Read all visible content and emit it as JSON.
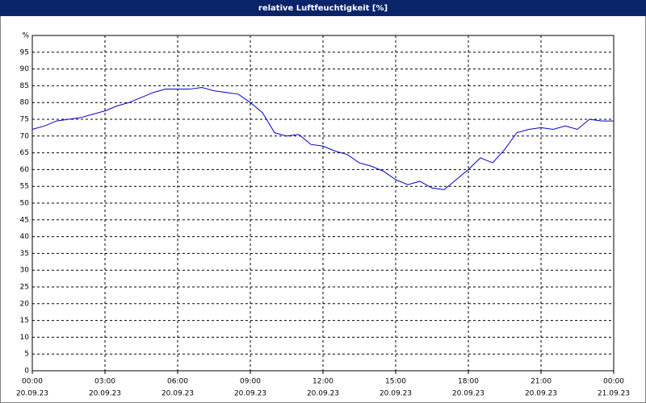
{
  "chart_data": {
    "type": "line",
    "title": "relative Luftfeuchtigkeit [%]",
    "y_label": "%",
    "x": [
      0,
      0.5,
      1,
      1.5,
      2,
      2.5,
      3,
      3.5,
      4,
      4.5,
      5,
      5.5,
      6,
      6.5,
      7,
      7.5,
      8,
      8.5,
      9,
      9.5,
      10,
      10.5,
      11,
      11.5,
      12,
      12.5,
      13,
      13.5,
      14,
      14.5,
      15,
      15.5,
      16,
      16.5,
      17,
      17.5,
      18,
      18.5,
      19,
      19.5,
      20,
      20.5,
      21,
      21.5,
      22,
      22.5,
      23,
      23.5,
      24
    ],
    "series": [
      {
        "name": "relative Luftfeuchtigkeit",
        "color": "#0000cc",
        "values": [
          72,
          73,
          74.5,
          75,
          75.5,
          76.5,
          77.5,
          79,
          80,
          81.5,
          83,
          84,
          84,
          84,
          84.5,
          83.5,
          83,
          82.5,
          80,
          77,
          71,
          70,
          70.5,
          67.5,
          67,
          65.5,
          64.5,
          62,
          61,
          59.5,
          57,
          55.5,
          56.5,
          54.5,
          54,
          57,
          60,
          63.5,
          62,
          66,
          71,
          72,
          72.5,
          72,
          73,
          72,
          75,
          74.5,
          74.5
        ]
      }
    ],
    "xlim": [
      0,
      24
    ],
    "ylim": [
      0,
      100
    ],
    "xticks": [
      {
        "value": 0,
        "label": [
          "00:00",
          "20.09.23"
        ]
      },
      {
        "value": 3,
        "label": [
          "03:00",
          "20.09.23"
        ]
      },
      {
        "value": 6,
        "label": [
          "06:00",
          "20.09.23"
        ]
      },
      {
        "value": 9,
        "label": [
          "09:00",
          "20.09.23"
        ]
      },
      {
        "value": 12,
        "label": [
          "12:00",
          "20.09.23"
        ]
      },
      {
        "value": 15,
        "label": [
          "15:00",
          "20.09.23"
        ]
      },
      {
        "value": 18,
        "label": [
          "18:00",
          "20.09.23"
        ]
      },
      {
        "value": 21,
        "label": [
          "21:00",
          "20.09.23"
        ]
      },
      {
        "value": 24,
        "label": [
          "00:00",
          "21.09.23"
        ]
      }
    ],
    "yticks": [
      0,
      5,
      10,
      15,
      20,
      25,
      30,
      35,
      40,
      45,
      50,
      55,
      60,
      65,
      70,
      75,
      80,
      85,
      90,
      95
    ],
    "grid": true
  }
}
